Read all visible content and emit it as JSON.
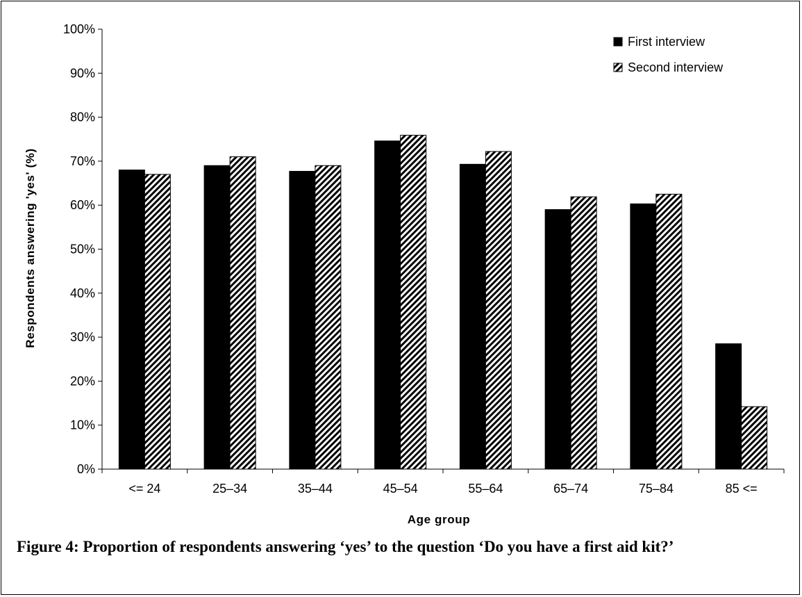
{
  "chart_data": {
    "type": "bar",
    "categories": [
      "<= 24",
      "25–34",
      "35–44",
      "45–54",
      "55–64",
      "65–74",
      "75–84",
      "85 <="
    ],
    "series": [
      {
        "name": "First interview",
        "values": [
          68.0,
          69.0,
          67.7,
          74.6,
          69.3,
          59.0,
          60.3,
          28.5
        ],
        "color": "#000000",
        "pattern": "solid"
      },
      {
        "name": "Second interview",
        "values": [
          67.0,
          71.0,
          69.0,
          75.9,
          72.2,
          61.9,
          62.5,
          14.2
        ],
        "color": "#000000",
        "pattern": "diagonal-hatch"
      }
    ],
    "ylim": [
      0,
      100
    ],
    "yticks": [
      "0%",
      "10%",
      "20%",
      "30%",
      "40%",
      "50%",
      "60%",
      "70%",
      "80%",
      "90%",
      "100%"
    ],
    "xlabel": "Age group",
    "ylabel": "Respondents answering 'yes' (%)",
    "grid": false,
    "legend_position": "top-right"
  },
  "caption": "Figure 4: Proportion of respondents answering ‘yes’ to the question ‘Do you have a first aid kit?’"
}
